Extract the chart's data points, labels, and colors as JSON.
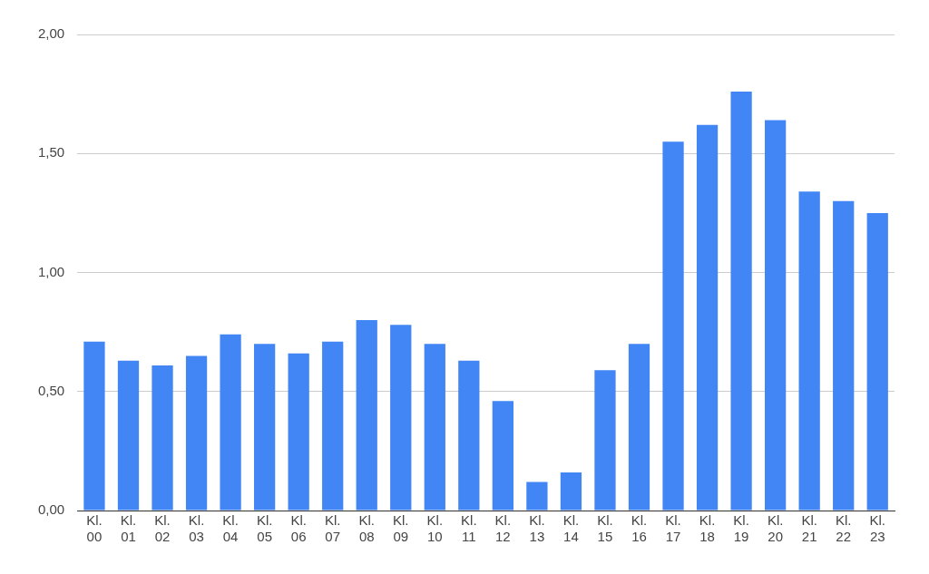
{
  "chart_data": {
    "type": "bar",
    "categories": [
      "Kl. 00",
      "Kl. 01",
      "Kl. 02",
      "Kl. 03",
      "Kl. 04",
      "Kl. 05",
      "Kl. 06",
      "Kl. 07",
      "Kl. 08",
      "Kl. 09",
      "Kl. 10",
      "Kl. 11",
      "Kl. 12",
      "Kl. 13",
      "Kl. 14",
      "Kl. 15",
      "Kl. 16",
      "Kl. 17",
      "Kl. 18",
      "Kl. 19",
      "Kl. 20",
      "Kl. 21",
      "Kl. 22",
      "Kl. 23"
    ],
    "values": [
      0.71,
      0.63,
      0.61,
      0.65,
      0.74,
      0.7,
      0.66,
      0.71,
      0.8,
      0.78,
      0.7,
      0.63,
      0.46,
      0.12,
      0.16,
      0.59,
      0.7,
      1.55,
      1.62,
      1.76,
      1.64,
      1.34,
      1.3,
      1.25
    ],
    "color": "#4285f4",
    "ylim": [
      0,
      2
    ],
    "yticks": [
      {
        "value": 0,
        "label": "0,00"
      },
      {
        "value": 0.5,
        "label": "0,50"
      },
      {
        "value": 1,
        "label": "1,00"
      },
      {
        "value": 1.5,
        "label": "1,50"
      },
      {
        "value": 2,
        "label": "2,00"
      }
    ],
    "grid": "y",
    "legend": false
  }
}
